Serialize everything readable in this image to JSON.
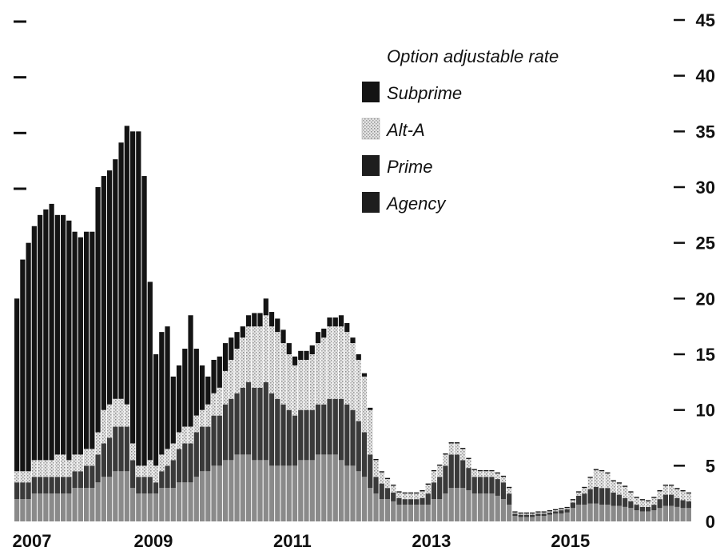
{
  "colors": {
    "Agency": "#8a8a8a",
    "Prime": "#3a3a3a",
    "Alt-A": "#cfcfcf",
    "Subprime": "#141414"
  },
  "chart_data": {
    "type": "bar",
    "stacked": true,
    "title": "",
    "xlabel": "",
    "ylabel": "",
    "ylim": [
      0,
      45
    ],
    "yticks_right": [
      0,
      5,
      10,
      15,
      20,
      25,
      30,
      35,
      40,
      45
    ],
    "xtick_labels": [
      "2007",
      "2009",
      "2011",
      "2013",
      "2015"
    ],
    "legend": {
      "title": "Option adjustable rate",
      "placement": "top-center",
      "entries": [
        "Subprime",
        "Alt-A",
        "Prime",
        "Agency"
      ]
    },
    "x_start": "2007-01",
    "x_end": "2016-09",
    "series": [
      {
        "name": "Agency",
        "values": [
          2,
          2,
          2,
          2.5,
          2.5,
          2.5,
          2.5,
          2.5,
          2.5,
          2.5,
          3,
          3,
          3,
          3,
          3.5,
          4,
          4,
          4.5,
          4.5,
          4.5,
          3,
          2.5,
          2.5,
          2.5,
          2.5,
          3,
          3,
          3,
          3.5,
          3.5,
          3.5,
          4,
          4.5,
          4.5,
          5,
          5,
          5.5,
          5.5,
          6,
          6,
          6,
          5.5,
          5.5,
          5.5,
          5,
          5,
          5,
          5,
          5,
          5.5,
          5.5,
          5.5,
          6,
          6,
          6,
          6,
          5.5,
          5,
          5,
          4.5,
          4,
          3,
          2.5,
          2,
          2,
          1.8,
          1.5,
          1.5,
          1.5,
          1.5,
          1.5,
          1.5,
          2,
          2,
          2.5,
          3,
          3,
          3,
          2.8,
          2.5,
          2.5,
          2.5,
          2.5,
          2.3,
          2,
          1.5,
          0.5,
          0.4,
          0.4,
          0.4,
          0.5,
          0.5,
          0.6,
          0.7,
          0.7,
          0.8,
          1.2,
          1.5,
          1.5,
          1.6,
          1.6,
          1.5,
          1.5,
          1.4,
          1.4,
          1.3,
          1.2,
          1,
          0.9,
          0.9,
          1,
          1.2,
          1.4,
          1.4,
          1.3,
          1.2,
          1.2
        ]
      },
      {
        "name": "Prime",
        "values": [
          1.5,
          1.5,
          1.5,
          1.5,
          1.5,
          1.5,
          1.5,
          1.5,
          1.5,
          1.5,
          1.5,
          1.5,
          2,
          2,
          2.5,
          3,
          3.5,
          4,
          4,
          4,
          2.5,
          1.5,
          1.5,
          1.5,
          1,
          1.5,
          2,
          2.5,
          3,
          3.5,
          3.5,
          4,
          4,
          4,
          4.5,
          4.5,
          5,
          5.5,
          5.5,
          6,
          6.5,
          6.5,
          6.5,
          7,
          6.5,
          6,
          5.5,
          5,
          4.5,
          4.5,
          4.5,
          4.5,
          4.5,
          4.5,
          5,
          5,
          5.5,
          5.5,
          5,
          4.5,
          4,
          3,
          1.5,
          1.4,
          1,
          0.8,
          0.6,
          0.5,
          0.5,
          0.5,
          0.6,
          1,
          1.5,
          2,
          2.5,
          3,
          3,
          2.5,
          2,
          1.5,
          1.5,
          1.5,
          1.5,
          1.5,
          1.5,
          1,
          0.2,
          0.2,
          0.2,
          0.2,
          0.2,
          0.2,
          0.2,
          0.2,
          0.3,
          0.3,
          0.5,
          0.8,
          1,
          1.3,
          1.5,
          1.5,
          1.5,
          1.2,
          1,
          0.8,
          0.6,
          0.5,
          0.4,
          0.4,
          0.5,
          0.8,
          1,
          1,
          0.8,
          0.7,
          0.6
        ]
      },
      {
        "name": "Alt-A",
        "values": [
          1,
          1,
          1,
          1.5,
          1.5,
          1.5,
          1.5,
          2,
          2,
          1.5,
          1.5,
          1.5,
          1.5,
          1.5,
          2,
          3,
          3,
          2.5,
          2.5,
          2,
          1.5,
          1,
          1,
          1.5,
          1.5,
          1.5,
          1.5,
          1.5,
          1.5,
          1.5,
          1.5,
          1.5,
          1.5,
          2,
          2,
          2.5,
          3,
          3.5,
          4,
          4.5,
          5,
          5.5,
          5.5,
          6,
          6,
          6,
          5.5,
          5,
          4.5,
          4.5,
          4.5,
          5,
          5.5,
          6,
          6.5,
          6.5,
          6.5,
          6.5,
          6,
          5.5,
          5,
          4,
          1.5,
          1,
          0.8,
          0.6,
          0.5,
          0.5,
          0.5,
          0.5,
          0.6,
          0.8,
          1,
          1,
          1,
          1,
          1,
          1,
          0.8,
          0.6,
          0.5,
          0.5,
          0.5,
          0.5,
          0.5,
          0.5,
          0.1,
          0.1,
          0.1,
          0.1,
          0.1,
          0.1,
          0.1,
          0.1,
          0.1,
          0.1,
          0.2,
          0.3,
          0.5,
          1,
          1.5,
          1.5,
          1.3,
          1,
          1,
          1,
          0.8,
          0.6,
          0.6,
          0.5,
          0.6,
          0.7,
          0.8,
          0.8,
          0.8,
          0.8,
          0.7
        ]
      },
      {
        "name": "Subprime",
        "values": [
          15.5,
          19,
          20.5,
          21,
          22,
          22.5,
          23,
          21.5,
          21.5,
          21.5,
          20,
          19.5,
          19.5,
          19.5,
          22,
          21,
          21,
          21.5,
          23,
          25,
          28,
          30,
          26,
          16,
          10,
          11,
          11,
          6,
          6,
          7,
          10,
          6,
          4,
          2.5,
          3,
          2.8,
          2.5,
          2,
          1.5,
          1,
          1,
          1.2,
          1.2,
          1.5,
          1.3,
          1.2,
          1.2,
          1,
          0.8,
          0.8,
          0.8,
          0.8,
          1,
          0.8,
          0.8,
          0.8,
          1,
          0.8,
          0.5,
          0.5,
          0.3,
          0.2,
          0.1,
          0.1,
          0.1,
          0.1,
          0.1,
          0.1,
          0.1,
          0.1,
          0.1,
          0.1,
          0.1,
          0.1,
          0.1,
          0.1,
          0.1,
          0.1,
          0.1,
          0.1,
          0.1,
          0.1,
          0.1,
          0.1,
          0.1,
          0.1,
          0.1,
          0.1,
          0.1,
          0.1,
          0.1,
          0.1,
          0.1,
          0.1,
          0.1,
          0.1,
          0.1,
          0.1,
          0.1,
          0.1,
          0.1,
          0.1,
          0.1,
          0.1,
          0.1,
          0.1,
          0.1,
          0.1,
          0.1,
          0.1,
          0.1,
          0.1,
          0.1,
          0.1,
          0.1,
          0.1,
          0.1
        ]
      }
    ]
  }
}
